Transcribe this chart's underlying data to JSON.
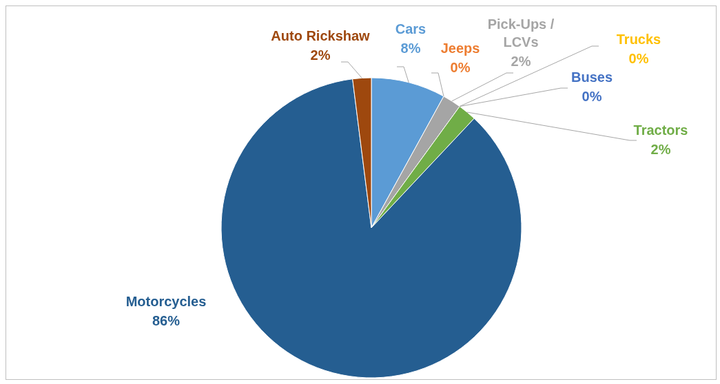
{
  "chart_data": {
    "type": "pie",
    "categories": [
      "Cars",
      "Jeeps",
      "Pick-Ups / LCVs",
      "Trucks",
      "Buses",
      "Tractors",
      "Motorcycles",
      "Auto Rickshaw"
    ],
    "values": [
      8,
      0,
      2,
      0,
      0,
      2,
      86,
      2
    ],
    "colors": [
      "#5b9bd5",
      "#ed7d31",
      "#a5a5a5",
      "#ffc000",
      "#4472c4",
      "#70ad47",
      "#255e91",
      "#9e480e"
    ],
    "value_labels": [
      "8%",
      "0%",
      "2%",
      "0%",
      "0%",
      "2%",
      "86%",
      "2%"
    ]
  }
}
